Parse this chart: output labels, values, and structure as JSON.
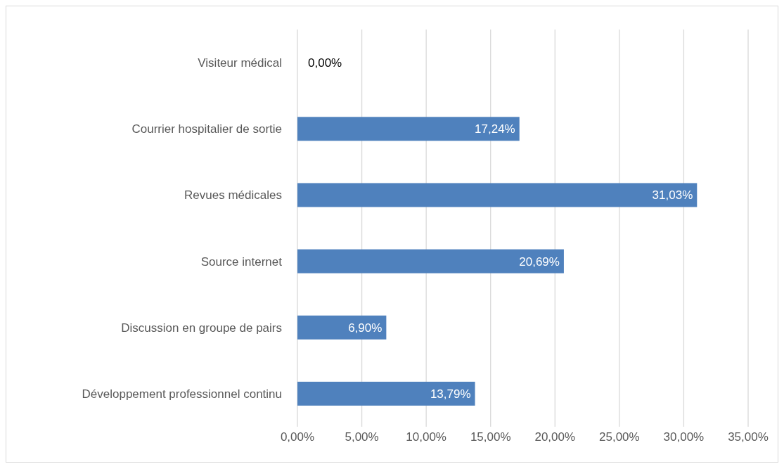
{
  "chart_data": {
    "type": "bar",
    "orientation": "horizontal",
    "categories": [
      "Visiteur médical",
      "Courrier hospitalier de sortie",
      "Revues médicales",
      "Source internet",
      "Discussion en groupe de pairs",
      "Développement professionnel continu"
    ],
    "values": [
      0,
      17.24,
      31.03,
      20.69,
      6.9,
      13.79
    ],
    "value_labels": [
      "0,00%",
      "17,24%",
      "31,03%",
      "20,69%",
      "6,90%",
      "13,79%"
    ],
    "color": "#4f81bd",
    "xlim": [
      0,
      35
    ],
    "xticks": [
      {
        "value": 0,
        "label": "0,00%"
      },
      {
        "value": 5,
        "label": "5,00%"
      },
      {
        "value": 10,
        "label": "10,00%"
      },
      {
        "value": 15,
        "label": "15,00%"
      },
      {
        "value": 20,
        "label": "20,00%"
      },
      {
        "value": 25,
        "label": "25,00%"
      },
      {
        "value": 30,
        "label": "30,00%"
      },
      {
        "value": 35,
        "label": "35,00%"
      }
    ],
    "grid": "x"
  }
}
